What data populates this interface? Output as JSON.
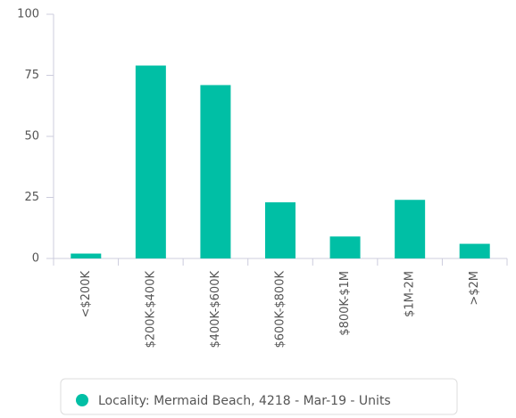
{
  "chart_data": {
    "type": "bar",
    "categories": [
      "<$200K",
      "$200K-$400K",
      "$400K-$600K",
      "$600K-$800K",
      "$800K-$1M",
      "$1M-2M",
      ">$2M"
    ],
    "series": [
      {
        "name": "Locality: Mermaid Beach, 4218 - Mar-19 - Units",
        "color": "#00bfa5",
        "values": [
          2,
          79,
          71,
          23,
          9,
          24,
          6
        ]
      }
    ],
    "ylim": [
      0,
      100
    ],
    "yticks": [
      0,
      25,
      50,
      75,
      100
    ],
    "grid": false,
    "legend": "bottom"
  }
}
